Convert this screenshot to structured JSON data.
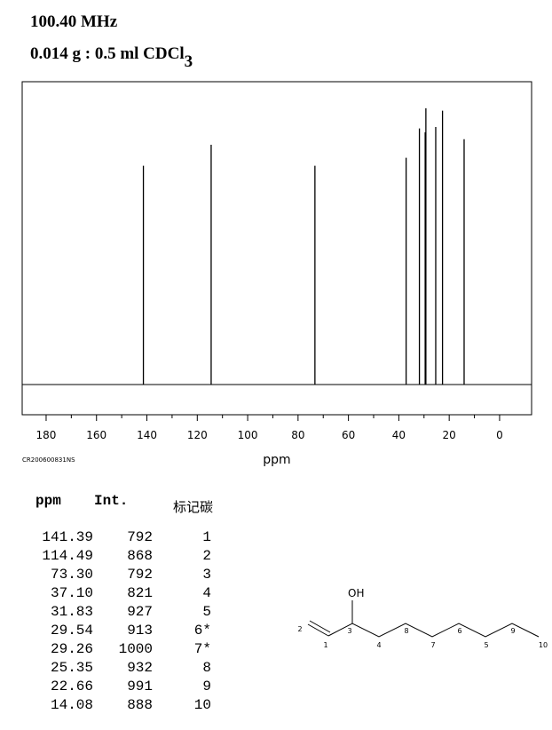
{
  "header": {
    "frequency": "100.40 MHz",
    "sample": "0.014 g : 0.5 ml CDCl",
    "sample_subscript": "3"
  },
  "chart_data": {
    "type": "spectrum",
    "xlabel": "ppm",
    "code": "CR200600831NS",
    "x": [
      141.39,
      114.49,
      73.3,
      37.1,
      31.83,
      29.54,
      29.26,
      25.35,
      22.66,
      14.08
    ],
    "values": [
      792,
      868,
      792,
      821,
      927,
      913,
      1000,
      932,
      991,
      888
    ],
    "color": "#000000",
    "xlim": [
      189.5,
      -12.7
    ],
    "xticks": [
      180,
      160,
      140,
      120,
      100,
      80,
      60,
      40,
      20,
      0
    ],
    "xminorticks": [
      170,
      150,
      130,
      110,
      90,
      70,
      50,
      30,
      10
    ],
    "ylim": [
      -109,
      1096
    ]
  },
  "table": {
    "columns": [
      "ppm",
      "Int.",
      "标记碳"
    ],
    "rows": [
      [
        "141.39",
        "792",
        "1"
      ],
      [
        "114.49",
        "868",
        "2"
      ],
      [
        "73.30",
        "792",
        "3"
      ],
      [
        "37.10",
        "821",
        "4"
      ],
      [
        "31.83",
        "927",
        "5"
      ],
      [
        "29.54",
        "913",
        "6*"
      ],
      [
        "29.26",
        "1000",
        "7*"
      ],
      [
        "25.35",
        "932",
        "8"
      ],
      [
        "22.66",
        "991",
        "9"
      ],
      [
        "14.08",
        "888",
        "10"
      ]
    ]
  },
  "molecule": {
    "oh": "OH",
    "labels": [
      "1",
      "2",
      "3",
      "4",
      "5",
      "6",
      "7",
      "8",
      "9",
      "10"
    ]
  }
}
